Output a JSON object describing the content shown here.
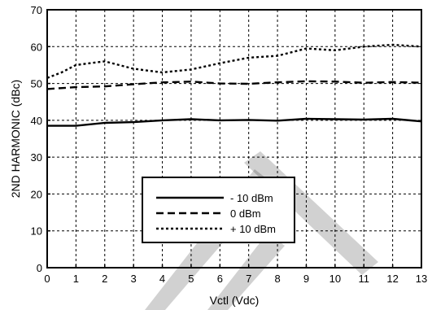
{
  "chart_data": {
    "type": "line",
    "title": "",
    "xlabel": "Vctl (Vdc)",
    "ylabel": "2ND HARMONIC  (dBc)",
    "xlim": [
      0,
      13
    ],
    "ylim": [
      0,
      70
    ],
    "xticks": [
      0,
      1,
      2,
      3,
      4,
      5,
      6,
      7,
      8,
      9,
      10,
      11,
      12,
      13
    ],
    "yticks": [
      0,
      10,
      20,
      30,
      40,
      50,
      60,
      70
    ],
    "grid": true,
    "legend_position": "lower-center",
    "watermark_color": "#000000",
    "series": [
      {
        "name": "- 10 dBm",
        "style": "solid",
        "x": [
          0,
          1,
          2,
          3,
          4,
          5,
          6,
          7,
          8,
          9,
          10,
          11,
          12,
          13
        ],
        "y": [
          38.5,
          38.5,
          39.3,
          39.5,
          40.0,
          40.3,
          40.0,
          40.1,
          39.9,
          40.4,
          40.3,
          40.2,
          40.4,
          39.7
        ]
      },
      {
        "name": "0 dBm",
        "style": "dashed",
        "x": [
          0,
          1,
          2,
          3,
          4,
          5,
          6,
          7,
          8,
          9,
          10,
          11,
          12,
          13
        ],
        "y": [
          48.5,
          49.0,
          49.2,
          49.8,
          50.3,
          50.5,
          50.0,
          49.9,
          50.3,
          50.6,
          50.5,
          50.2,
          50.4,
          50.2
        ]
      },
      {
        "name": "+ 10 dBm",
        "style": "dotted",
        "x": [
          0,
          0.5,
          1,
          2,
          3,
          4,
          5,
          6,
          7,
          8,
          9,
          10,
          11,
          12,
          13
        ],
        "y": [
          51.5,
          53.0,
          55.0,
          56.0,
          54.0,
          53.0,
          53.8,
          55.5,
          57.0,
          57.5,
          59.5,
          59.0,
          60.0,
          60.5,
          60.0
        ]
      }
    ]
  }
}
